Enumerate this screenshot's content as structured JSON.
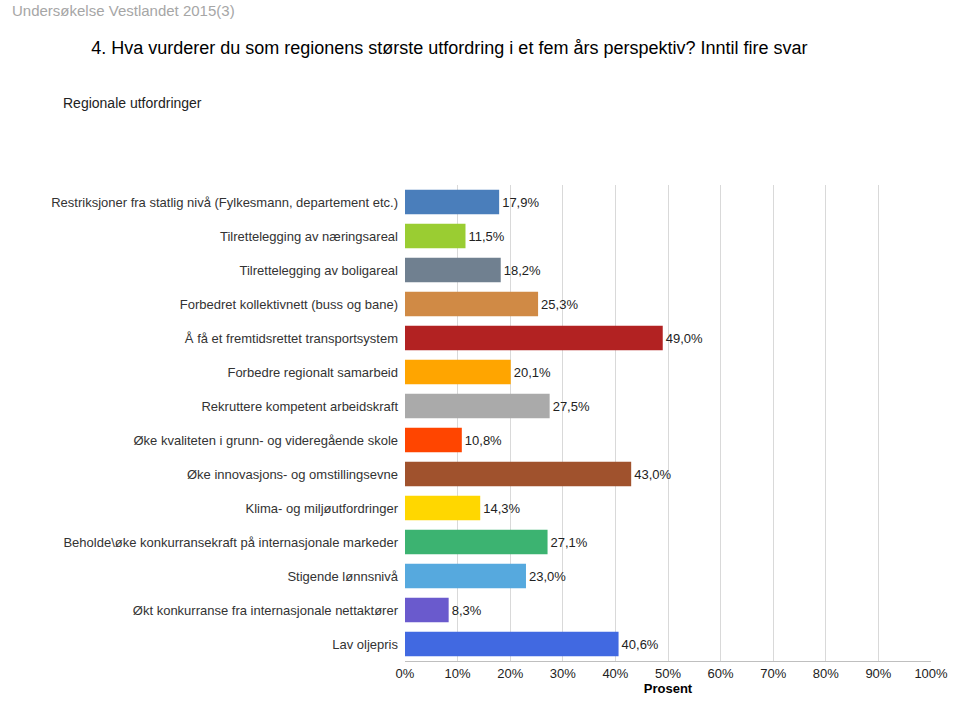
{
  "chart_data": {
    "type": "bar",
    "orientation": "horizontal",
    "title": "4. Hva vurderer du som regionens største utfordring i et fem års perspektiv? Inntil fire svar",
    "subtitle": "Regionale utfordringer",
    "annotations": [
      "Undersøkelse Vestlandet 2015(3)"
    ],
    "xlabel": "Prosent",
    "categories": [
      "Restriksjoner fra statlig nivå (Fylkesmann, departement etc.)",
      "Tilrettelegging av næringsareal",
      "Tilrettelegging av boligareal",
      "Forbedret kollektivnett (buss og bane)",
      "Å få et fremtidsrettet transportsystem",
      "Forbedre regionalt samarbeid",
      "Rekruttere kompetent arbeidskraft",
      "Øke kvaliteten i grunn- og videregående skole",
      "Øke innovasjons- og omstillingsevne",
      "Klima- og miljøutfordringer",
      "Beholde\\øke konkurransekraft på internasjonale markeder",
      "Stigende lønnsnivå",
      "Økt konkurranse fra internasjonale nettaktører",
      "Lav oljepris"
    ],
    "values": [
      17.9,
      11.5,
      18.2,
      25.3,
      49.0,
      20.1,
      27.5,
      10.8,
      43.0,
      14.3,
      27.1,
      23.0,
      8.3,
      40.6
    ],
    "value_labels": [
      "17,9%",
      "11,5%",
      "18,2%",
      "25,3%",
      "49,0%",
      "20,1%",
      "27,5%",
      "10,8%",
      "43,0%",
      "14,3%",
      "27,1%",
      "23,0%",
      "8,3%",
      "40,6%"
    ],
    "colors": [
      "#4a7ebb",
      "#9acd32",
      "#708090",
      "#d08a45",
      "#b22222",
      "#ffa500",
      "#aaaaaa",
      "#ff4500",
      "#a0522d",
      "#ffd700",
      "#3cb371",
      "#56a9de",
      "#6a5acd",
      "#4169e1"
    ],
    "data_labels": true,
    "xlim": [
      0,
      100
    ],
    "xticks": [
      {
        "value": 0,
        "label": "0%"
      },
      {
        "value": 10,
        "label": "10%"
      },
      {
        "value": 20,
        "label": "20%"
      },
      {
        "value": 30,
        "label": "30%"
      },
      {
        "value": 40,
        "label": "40%"
      },
      {
        "value": 50,
        "label": "50%"
      },
      {
        "value": 60,
        "label": "60%"
      },
      {
        "value": 70,
        "label": "70%"
      },
      {
        "value": 80,
        "label": "80%"
      },
      {
        "value": 90,
        "label": "90%"
      },
      {
        "value": 100,
        "label": "100%"
      }
    ],
    "grid": true
  }
}
